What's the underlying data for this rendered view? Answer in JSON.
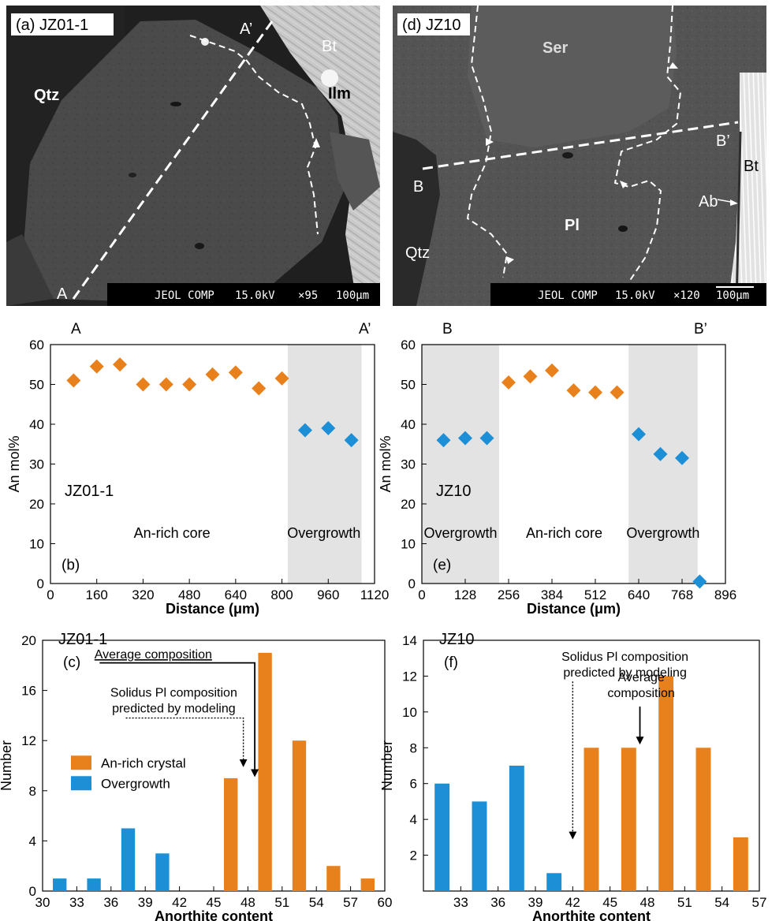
{
  "micrographs": [
    {
      "panel_label": "(a) JZ01-1",
      "phase_labels": {
        "qtz": "Qtz",
        "bt": "Bt",
        "ilm": "Ilm"
      },
      "profile_start": "A",
      "profile_end": "A’",
      "scale_bar": {
        "instrument": "JEOL COMP",
        "voltage": "15.0kV",
        "magnification": "×95",
        "scale": "100μm"
      }
    },
    {
      "panel_label": "(d) JZ10",
      "phase_labels": {
        "ser": "Ser",
        "pl": "Pl",
        "qtz": "Qtz",
        "bt": "Bt",
        "ab": "Ab"
      },
      "profile_start": "B",
      "profile_end": "B’",
      "scale_bar": {
        "instrument": "JEOL COMP",
        "voltage": "15.0kV",
        "magnification": "×120",
        "scale": "100μm"
      }
    }
  ],
  "colors": {
    "an_rich": "#e8801c",
    "overgrowth": "#1c8fd6",
    "shade": "#e3e3e3"
  },
  "chart_data": [
    {
      "id": "b",
      "type": "scatter",
      "panel_label": "(b)",
      "sample": "JZ01-1",
      "top_labels": [
        "A",
        "A’"
      ],
      "xlabel": "Distance (μm)",
      "ylabel": "An mol%",
      "xlim": [
        0,
        1120
      ],
      "ylim": [
        0,
        60
      ],
      "xticks": [
        0,
        160,
        320,
        480,
        640,
        800,
        960,
        1120
      ],
      "yticks": [
        0,
        10,
        20,
        30,
        40,
        50,
        60
      ],
      "shaded_regions": [
        {
          "x": [
            820,
            1075
          ],
          "label": "Overgrowth"
        }
      ],
      "region_labels": [
        {
          "text": "An-rich core",
          "x": 420,
          "y": 11.5
        },
        {
          "text": "Overgrowth",
          "x": 945,
          "y": 11.5
        }
      ],
      "series": [
        {
          "group": "an_rich",
          "x": [
            80,
            160,
            240,
            320,
            400,
            480,
            560,
            640,
            720,
            800
          ],
          "y": [
            51,
            54.5,
            55,
            50,
            50,
            50,
            52.5,
            53,
            49,
            51.5
          ]
        },
        {
          "group": "overgrowth",
          "x": [
            880,
            960,
            1040
          ],
          "y": [
            38.5,
            39,
            36
          ]
        }
      ]
    },
    {
      "id": "e",
      "type": "scatter",
      "panel_label": "(e)",
      "sample": "JZ10",
      "top_labels": [
        "B",
        "B’"
      ],
      "xlabel": "Distance (μm)",
      "ylabel": "An mol%",
      "xlim": [
        0,
        896
      ],
      "ylim": [
        0,
        60
      ],
      "xticks": [
        0,
        128,
        256,
        384,
        512,
        640,
        768,
        896
      ],
      "yticks": [
        0,
        10,
        20,
        30,
        40,
        50,
        60
      ],
      "shaded_regions": [
        {
          "x": [
            0,
            228
          ],
          "label": "Overgrowth"
        },
        {
          "x": [
            610,
            814
          ],
          "label": "Overgrowth"
        }
      ],
      "region_labels": [
        {
          "text": "Overgrowth",
          "x": 114,
          "y": 11.5
        },
        {
          "text": "An-rich core",
          "x": 420,
          "y": 11.5
        },
        {
          "text": "Overgrowth",
          "x": 712,
          "y": 11.5
        }
      ],
      "series": [
        {
          "group": "overgrowth",
          "x": [
            64,
            128,
            192,
            640,
            704,
            768,
            820
          ],
          "y": [
            36,
            36.5,
            36.5,
            37.5,
            32.5,
            31.5,
            0.5
          ]
        },
        {
          "group": "an_rich",
          "x": [
            256,
            320,
            384,
            448,
            512,
            576
          ],
          "y": [
            50.5,
            52,
            53.5,
            48.5,
            48,
            48
          ]
        }
      ]
    },
    {
      "id": "c",
      "type": "bar",
      "panel_label": "(c)",
      "sample": "JZ01-1",
      "xlabel": "Anorthite content",
      "ylabel": "Number",
      "xlim": [
        30,
        60
      ],
      "ylim": [
        0,
        20
      ],
      "xticks": [
        30,
        33,
        36,
        39,
        42,
        45,
        48,
        51,
        54,
        57,
        60
      ],
      "yticks": [
        0,
        4,
        8,
        12,
        16,
        20
      ],
      "legend": {
        "placement": "center-left",
        "entries": [
          {
            "group": "an_rich",
            "label": "An-rich crystal"
          },
          {
            "group": "overgrowth",
            "label": "Overgrowth"
          }
        ]
      },
      "bar_width": 1.2,
      "bars": [
        {
          "x": 31.5,
          "value": 1,
          "group": "overgrowth"
        },
        {
          "x": 34.5,
          "value": 1,
          "group": "overgrowth"
        },
        {
          "x": 37.5,
          "value": 5,
          "group": "overgrowth"
        },
        {
          "x": 40.5,
          "value": 3,
          "group": "overgrowth"
        },
        {
          "x": 46.5,
          "value": 9,
          "group": "an_rich"
        },
        {
          "x": 49.5,
          "value": 19,
          "group": "an_rich"
        },
        {
          "x": 52.5,
          "value": 12,
          "group": "an_rich"
        },
        {
          "x": 55.5,
          "value": 2,
          "group": "an_rich"
        },
        {
          "x": 58.5,
          "value": 1,
          "group": "an_rich"
        }
      ],
      "annotations": [
        {
          "text": [
            "Average  composition"
          ],
          "underline": true,
          "tx": 39.7,
          "ty": 18.55,
          "path": [
            [
              35,
              18.2
            ],
            [
              48.6,
              18.2
            ],
            [
              48.6,
              9.4
            ]
          ],
          "dashed": false
        },
        {
          "text": [
            "Solidus Pl composition",
            "predicted by modeling"
          ],
          "tx": 41.5,
          "ty": 15.5,
          "path": [
            [
              37.3,
              13.8
            ],
            [
              47.6,
              13.8
            ],
            [
              47.6,
              10.2
            ]
          ],
          "dashed": true
        }
      ]
    },
    {
      "id": "f",
      "type": "bar",
      "panel_label": "(f)",
      "sample": "JZ10",
      "xlabel": "Anorthite content",
      "ylabel": "Number",
      "xlim": [
        30,
        57
      ],
      "ylim": [
        0,
        14
      ],
      "xticks": [
        33,
        36,
        39,
        42,
        45,
        48,
        51,
        54,
        57
      ],
      "yticks": [
        2,
        4,
        6,
        8,
        10,
        12,
        14
      ],
      "bar_width": 1.2,
      "bars": [
        {
          "x": 31.5,
          "value": 6,
          "group": "overgrowth"
        },
        {
          "x": 34.5,
          "value": 5,
          "group": "overgrowth"
        },
        {
          "x": 37.5,
          "value": 7,
          "group": "overgrowth"
        },
        {
          "x": 40.5,
          "value": 1,
          "group": "overgrowth"
        },
        {
          "x": 43.5,
          "value": 8,
          "group": "an_rich"
        },
        {
          "x": 46.5,
          "value": 8,
          "group": "an_rich"
        },
        {
          "x": 49.5,
          "value": 12,
          "group": "an_rich"
        },
        {
          "x": 52.5,
          "value": 8,
          "group": "an_rich"
        },
        {
          "x": 55.5,
          "value": 3,
          "group": "an_rich"
        }
      ],
      "annotations": [
        {
          "text": [
            "Solidus Pl composition",
            "predicted by modeling"
          ],
          "tx": 46.2,
          "ty": 12.85,
          "path": [
            [
              42,
              11.7
            ],
            [
              42,
              3.1
            ]
          ],
          "dashed": true
        },
        {
          "text": [
            "Average",
            "composition"
          ],
          "tx": 47.5,
          "ty": 11.7,
          "path": [
            [
              47.4,
              10.3
            ],
            [
              47.4,
              8.4
            ]
          ],
          "dashed": false
        }
      ]
    }
  ]
}
